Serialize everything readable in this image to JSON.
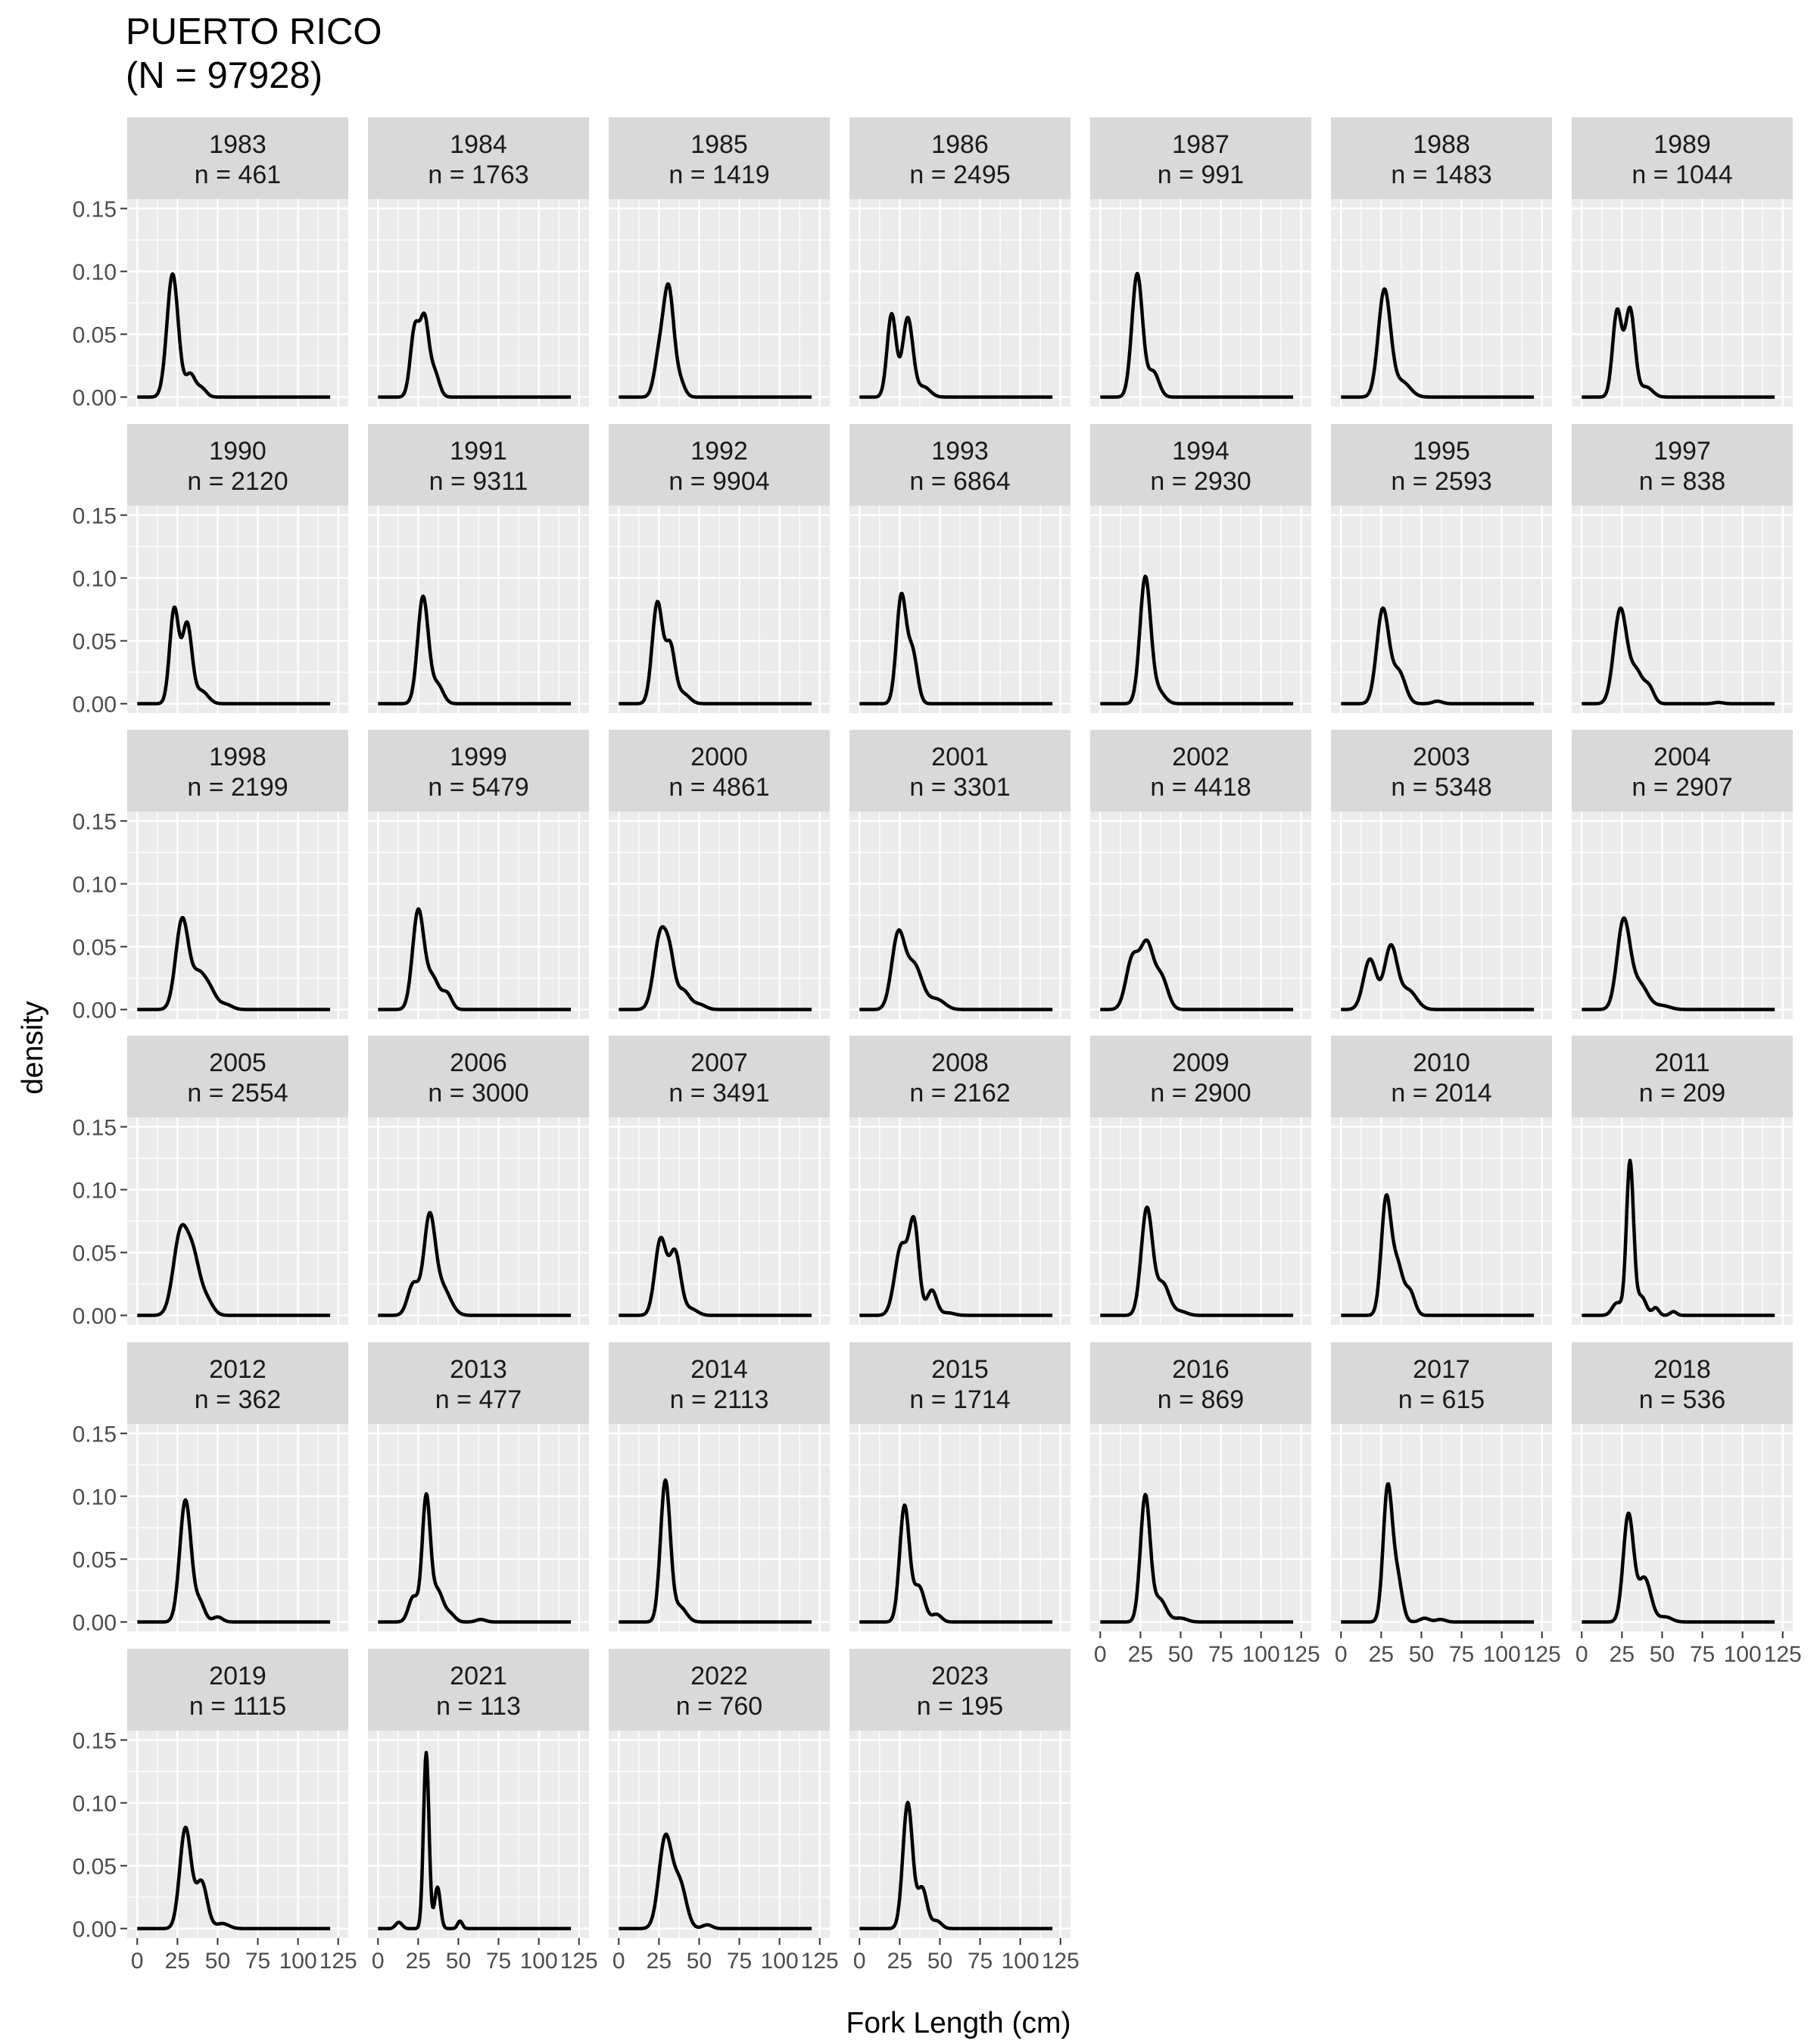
{
  "chart_data": {
    "type": "line",
    "title": "PUERTO RICO",
    "subtitle": "(N = 97928)",
    "xlabel": "Fork Length (cm)",
    "ylabel": "density",
    "xlim": [
      0,
      125
    ],
    "ylim": [
      0,
      0.15
    ],
    "x_ticks": [
      0,
      25,
      50,
      75,
      100,
      125
    ],
    "x_tick_labels": [
      "0",
      "25",
      "50",
      "75",
      "100",
      "125"
    ],
    "y_ticks": [
      0,
      0.05,
      0.1,
      0.15
    ],
    "y_tick_labels": [
      "0.00",
      "0.05",
      "0.10",
      "0.15"
    ],
    "grid": true,
    "legend": "none",
    "colors": {
      "panel_bg": "#ebebeb",
      "strip_bg": "#d9d9d9",
      "grid": "#ffffff",
      "line": "#000000",
      "axis_text": "#4d4d4d"
    },
    "panels": [
      {
        "year": "1983",
        "n": "n = 461",
        "peaks": [
          [
            22,
            0.098,
            3.5
          ],
          [
            33,
            0.018,
            3
          ],
          [
            40,
            0.007,
            3
          ]
        ]
      },
      {
        "year": "1984",
        "n": "n = 1763",
        "peaks": [
          [
            23,
            0.055,
            2.8
          ],
          [
            29,
            0.058,
            2.6
          ],
          [
            35,
            0.02,
            3
          ]
        ]
      },
      {
        "year": "1985",
        "n": "n = 1419",
        "peaks": [
          [
            25,
            0.03,
            3
          ],
          [
            31,
            0.085,
            3.2
          ],
          [
            38,
            0.012,
            3
          ]
        ]
      },
      {
        "year": "1986",
        "n": "n = 2495",
        "peaks": [
          [
            20,
            0.066,
            2.8
          ],
          [
            30,
            0.063,
            3.2
          ],
          [
            40,
            0.008,
            4
          ]
        ]
      },
      {
        "year": "1987",
        "n": "n = 991",
        "peaks": [
          [
            23,
            0.098,
            3.3
          ],
          [
            33,
            0.02,
            3.5
          ]
        ]
      },
      {
        "year": "1988",
        "n": "n = 1483",
        "peaks": [
          [
            27,
            0.085,
            3.8
          ],
          [
            38,
            0.012,
            5
          ]
        ]
      },
      {
        "year": "1989",
        "n": "n = 1044",
        "peaks": [
          [
            22,
            0.068,
            2.8
          ],
          [
            30,
            0.07,
            3
          ],
          [
            40,
            0.008,
            4
          ]
        ]
      },
      {
        "year": "1990",
        "n": "n = 2120",
        "peaks": [
          [
            23,
            0.075,
            2.8
          ],
          [
            31,
            0.063,
            3
          ],
          [
            40,
            0.01,
            4
          ]
        ]
      },
      {
        "year": "1991",
        "n": "n = 9311",
        "peaks": [
          [
            28,
            0.085,
            3.3
          ],
          [
            37,
            0.015,
            3.5
          ]
        ]
      },
      {
        "year": "1992",
        "n": "n = 9904",
        "peaks": [
          [
            24,
            0.08,
            3.2
          ],
          [
            32,
            0.045,
            3
          ],
          [
            40,
            0.008,
            4
          ]
        ]
      },
      {
        "year": "1993",
        "n": "n = 6864",
        "peaks": [
          [
            26,
            0.085,
            3
          ],
          [
            33,
            0.04,
            3
          ]
        ]
      },
      {
        "year": "1994",
        "n": "n = 2930",
        "peaks": [
          [
            28,
            0.1,
            3.3
          ],
          [
            36,
            0.01,
            4
          ]
        ]
      },
      {
        "year": "1995",
        "n": "n = 2593",
        "peaks": [
          [
            26,
            0.075,
            3.8
          ],
          [
            36,
            0.025,
            4
          ],
          [
            60,
            0.002,
            3
          ]
        ]
      },
      {
        "year": "1997",
        "n": "n = 838",
        "peaks": [
          [
            24,
            0.075,
            4
          ],
          [
            34,
            0.025,
            4
          ],
          [
            42,
            0.012,
            3
          ],
          [
            85,
            0.001,
            3
          ]
        ]
      },
      {
        "year": "1998",
        "n": "n = 2199",
        "peaks": [
          [
            28,
            0.072,
            4
          ],
          [
            38,
            0.025,
            4
          ],
          [
            45,
            0.015,
            4
          ],
          [
            55,
            0.004,
            4
          ]
        ]
      },
      {
        "year": "1999",
        "n": "n = 5479",
        "peaks": [
          [
            25,
            0.078,
            3.5
          ],
          [
            34,
            0.025,
            4
          ],
          [
            43,
            0.012,
            3
          ]
        ]
      },
      {
        "year": "2000",
        "n": "n = 4861",
        "peaks": [
          [
            26,
            0.06,
            4
          ],
          [
            32,
            0.03,
            3
          ],
          [
            40,
            0.015,
            4
          ],
          [
            50,
            0.004,
            4
          ]
        ]
      },
      {
        "year": "2001",
        "n": "n = 3301",
        "peaks": [
          [
            24,
            0.058,
            4
          ],
          [
            34,
            0.035,
            5
          ],
          [
            48,
            0.008,
            5
          ]
        ]
      },
      {
        "year": "2002",
        "n": "n = 4418",
        "peaks": [
          [
            20,
            0.04,
            4
          ],
          [
            29,
            0.05,
            4
          ],
          [
            38,
            0.025,
            4
          ]
        ]
      },
      {
        "year": "2003",
        "n": "n = 5348",
        "peaks": [
          [
            18,
            0.04,
            4
          ],
          [
            31,
            0.05,
            4
          ],
          [
            42,
            0.015,
            5
          ]
        ]
      },
      {
        "year": "2004",
        "n": "n = 2907",
        "peaks": [
          [
            26,
            0.07,
            4
          ],
          [
            36,
            0.02,
            5
          ],
          [
            50,
            0.003,
            5
          ]
        ]
      },
      {
        "year": "2005",
        "n": "n = 2554",
        "peaks": [
          [
            27,
            0.065,
            4.5
          ],
          [
            35,
            0.04,
            4
          ],
          [
            43,
            0.012,
            4
          ]
        ]
      },
      {
        "year": "2006",
        "n": "n = 3000",
        "peaks": [
          [
            22,
            0.025,
            3.5
          ],
          [
            32,
            0.075,
            3.5
          ],
          [
            40,
            0.022,
            5
          ]
        ]
      },
      {
        "year": "2007",
        "n": "n = 3491",
        "peaks": [
          [
            26,
            0.06,
            3.5
          ],
          [
            35,
            0.05,
            3.5
          ],
          [
            45,
            0.005,
            4
          ]
        ]
      },
      {
        "year": "2008",
        "n": "n = 2162",
        "peaks": [
          [
            26,
            0.055,
            4
          ],
          [
            34,
            0.07,
            3
          ],
          [
            45,
            0.02,
            3
          ],
          [
            55,
            0.002,
            4
          ]
        ]
      },
      {
        "year": "2009",
        "n": "n = 2900",
        "peaks": [
          [
            29,
            0.085,
            3.5
          ],
          [
            39,
            0.025,
            4
          ],
          [
            50,
            0.003,
            4
          ]
        ]
      },
      {
        "year": "2010",
        "n": "n = 2014",
        "peaks": [
          [
            28,
            0.09,
            3
          ],
          [
            35,
            0.04,
            3.5
          ],
          [
            43,
            0.018,
            3
          ]
        ]
      },
      {
        "year": "2011",
        "n": "n = 209",
        "peaks": [
          [
            22,
            0.01,
            3
          ],
          [
            30,
            0.122,
            2.2
          ],
          [
            37,
            0.015,
            3
          ],
          [
            46,
            0.006,
            2
          ],
          [
            57,
            0.003,
            2
          ]
        ]
      },
      {
        "year": "2012",
        "n": "n = 362",
        "peaks": [
          [
            30,
            0.097,
            3.5
          ],
          [
            39,
            0.015,
            3
          ],
          [
            50,
            0.004,
            3
          ]
        ]
      },
      {
        "year": "2013",
        "n": "n = 477",
        "peaks": [
          [
            22,
            0.02,
            3
          ],
          [
            30,
            0.098,
            2.5
          ],
          [
            37,
            0.025,
            3.5
          ],
          [
            45,
            0.006,
            3
          ],
          [
            64,
            0.002,
            3
          ]
        ]
      },
      {
        "year": "2014",
        "n": "n = 2113",
        "peaks": [
          [
            29,
            0.112,
            3
          ],
          [
            38,
            0.012,
            4
          ]
        ]
      },
      {
        "year": "2015",
        "n": "n = 1714",
        "peaks": [
          [
            28,
            0.092,
            3
          ],
          [
            37,
            0.028,
            3.5
          ],
          [
            48,
            0.006,
            3
          ]
        ]
      },
      {
        "year": "2016",
        "n": "n = 869",
        "peaks": [
          [
            28,
            0.1,
            3
          ],
          [
            37,
            0.018,
            4
          ],
          [
            50,
            0.003,
            4
          ]
        ]
      },
      {
        "year": "2017",
        "n": "n = 615",
        "peaks": [
          [
            29,
            0.105,
            2.8
          ],
          [
            35,
            0.035,
            3
          ],
          [
            52,
            0.003,
            3
          ],
          [
            62,
            0.002,
            3
          ]
        ]
      },
      {
        "year": "2018",
        "n": "n = 536",
        "peaks": [
          [
            29,
            0.085,
            3.2
          ],
          [
            39,
            0.035,
            4
          ],
          [
            52,
            0.004,
            4
          ]
        ]
      },
      {
        "year": "2019",
        "n": "n = 1115",
        "peaks": [
          [
            30,
            0.08,
            3.5
          ],
          [
            40,
            0.037,
            3.5
          ],
          [
            53,
            0.004,
            4
          ]
        ]
      },
      {
        "year": "2021",
        "n": "n = 113",
        "peaks": [
          [
            13,
            0.005,
            2
          ],
          [
            30,
            0.14,
            1.7
          ],
          [
            37,
            0.033,
            1.8
          ],
          [
            51,
            0.006,
            1.5
          ]
        ]
      },
      {
        "year": "2022",
        "n": "n = 760",
        "peaks": [
          [
            29,
            0.072,
            4
          ],
          [
            38,
            0.035,
            4
          ],
          [
            55,
            0.003,
            3
          ]
        ]
      },
      {
        "year": "2023",
        "n": "n = 195",
        "peaks": [
          [
            30,
            0.1,
            3
          ],
          [
            39,
            0.032,
            3
          ],
          [
            48,
            0.006,
            3
          ]
        ]
      }
    ]
  }
}
